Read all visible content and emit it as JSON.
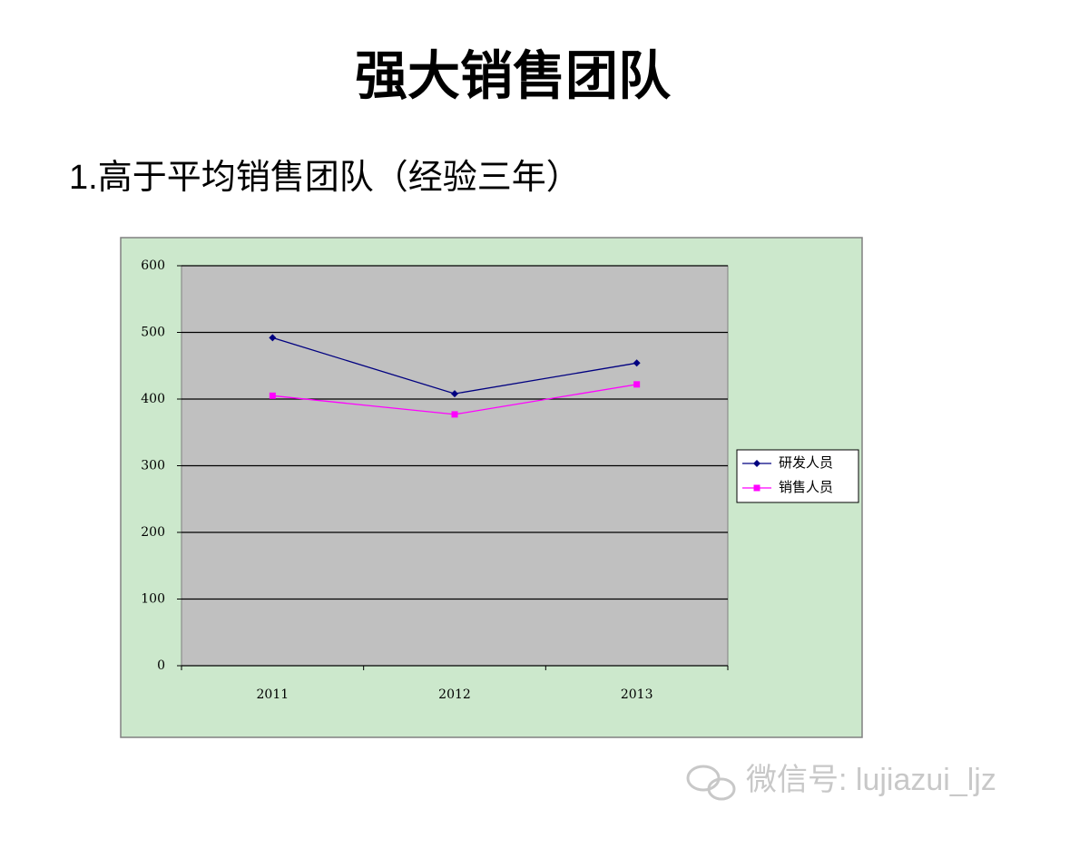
{
  "slide": {
    "title": "强大销售团队",
    "subtitle": "1.高于平均销售团队（经验三年）",
    "watermark": "微信号: lujiazui_ljz"
  },
  "chart_data": {
    "type": "line",
    "categories": [
      "2011",
      "2012",
      "2013"
    ],
    "series": [
      {
        "name": "研发人员",
        "color": "#000080",
        "marker": "diamond",
        "values": [
          492,
          408,
          454
        ]
      },
      {
        "name": "销售人员",
        "color": "#ff00ff",
        "marker": "square",
        "values": [
          405,
          377,
          422
        ]
      }
    ],
    "ylim": [
      0,
      600
    ],
    "yticks": [
      0,
      100,
      200,
      300,
      400,
      500,
      600
    ],
    "grid": true,
    "legend": "right"
  }
}
